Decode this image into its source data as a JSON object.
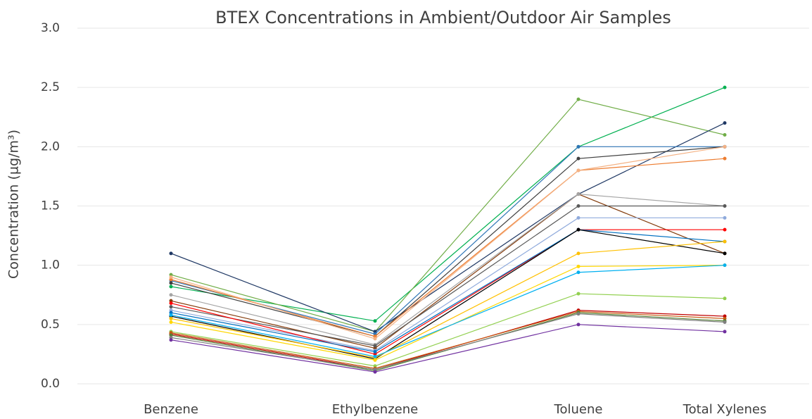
{
  "chart_data": {
    "type": "line",
    "title": "BTEX Concentrations in Ambient/Outdoor Air Samples",
    "y_label": "Concentration (µg/m³)",
    "categories": [
      "Benzene",
      "Ethylbenzene",
      "Toluene",
      "Total Xylenes"
    ],
    "ylim": [
      0,
      3
    ],
    "yticks": [
      {
        "value": 0,
        "label": "0.0"
      },
      0.5,
      {
        "value": 1,
        "label": "1.0"
      },
      1.5,
      {
        "value": 2,
        "label": "2.0"
      },
      2.5,
      {
        "value": 3,
        "label": "3.0"
      }
    ],
    "grid": true,
    "series": [
      {
        "color": "#00b050",
        "values": [
          0.82,
          0.53,
          2.0,
          2.5
        ]
      },
      {
        "color": "#70ad47",
        "values": [
          0.92,
          0.44,
          2.4,
          2.1
        ]
      },
      {
        "color": "#1f3864",
        "values": [
          1.1,
          0.44,
          1.6,
          2.2
        ]
      },
      {
        "color": "#2e75b6",
        "values": [
          0.87,
          0.42,
          2.0,
          2.0
        ]
      },
      {
        "color": "#404040",
        "values": [
          0.85,
          0.4,
          1.9,
          2.0
        ]
      },
      {
        "color": "#ed7d31",
        "values": [
          0.88,
          0.4,
          1.8,
          1.9
        ]
      },
      {
        "color": "#f4b183",
        "values": [
          0.9,
          0.38,
          1.8,
          2.0
        ]
      },
      {
        "color": "#843c0c",
        "values": [
          0.7,
          0.3,
          1.6,
          1.1
        ]
      },
      {
        "color": "#a5a5a5",
        "values": [
          0.75,
          0.33,
          1.6,
          1.5
        ]
      },
      {
        "color": "#595959",
        "values": [
          0.65,
          0.32,
          1.5,
          1.5
        ]
      },
      {
        "color": "#8faadc",
        "values": [
          0.62,
          0.28,
          1.4,
          1.4
        ]
      },
      {
        "color": "#ff0000",
        "values": [
          0.68,
          0.25,
          1.3,
          1.3
        ]
      },
      {
        "color": "#0070c0",
        "values": [
          0.6,
          0.27,
          1.3,
          1.2
        ]
      },
      {
        "color": "#000000",
        "values": [
          0.57,
          0.21,
          1.3,
          1.1
        ]
      },
      {
        "color": "#ffc000",
        "values": [
          0.55,
          0.22,
          1.1,
          1.2
        ]
      },
      {
        "color": "#ffd700",
        "values": [
          0.52,
          0.2,
          0.99,
          1.0
        ]
      },
      {
        "color": "#00b0f0",
        "values": [
          0.58,
          0.23,
          0.94,
          1.0
        ]
      },
      {
        "color": "#92d050",
        "values": [
          0.44,
          0.15,
          0.76,
          0.72
        ]
      },
      {
        "color": "#c00000",
        "values": [
          0.42,
          0.12,
          0.62,
          0.57
        ]
      },
      {
        "color": "#c55a11",
        "values": [
          0.43,
          0.13,
          0.61,
          0.55
        ]
      },
      {
        "color": "#548235",
        "values": [
          0.41,
          0.11,
          0.6,
          0.53
        ]
      },
      {
        "color": "#7f7f7f",
        "values": [
          0.39,
          0.12,
          0.59,
          0.52
        ]
      },
      {
        "color": "#7030a0",
        "values": [
          0.37,
          0.1,
          0.5,
          0.44
        ]
      }
    ]
  }
}
